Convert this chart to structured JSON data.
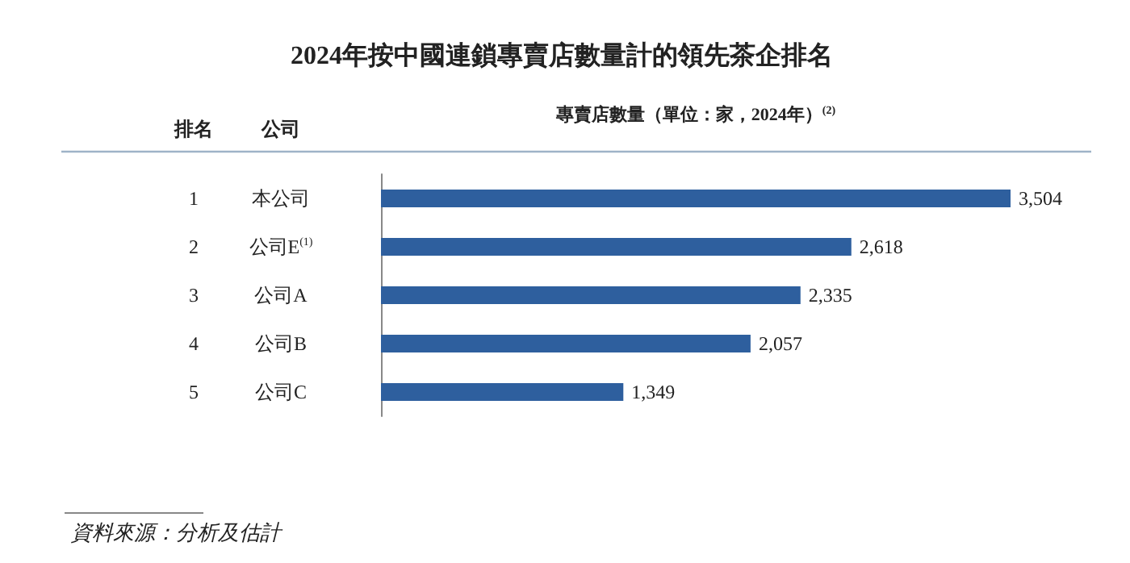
{
  "chart_data": {
    "type": "bar",
    "orientation": "horizontal",
    "title": "2024年按中國連鎖專賣店數量計的領先茶企排名",
    "xlabel": "專賣店數量（單位：家，2024年）$^{(2)}$",
    "categories": [
      "本公司",
      "公司E$^{(1)}$",
      "公司A",
      "公司B",
      "公司C"
    ],
    "values": [
      3504,
      2618,
      2335,
      2057,
      1349
    ],
    "value_labels": [
      "3,504",
      "2,618",
      "2,335",
      "2,057",
      "1,349"
    ],
    "color": "#2e5f9e",
    "grid": false,
    "annotations": [
      "排名",
      "公司",
      "1",
      "2",
      "3",
      "4",
      "5",
      "資料來源：分析及估計"
    ]
  }
}
